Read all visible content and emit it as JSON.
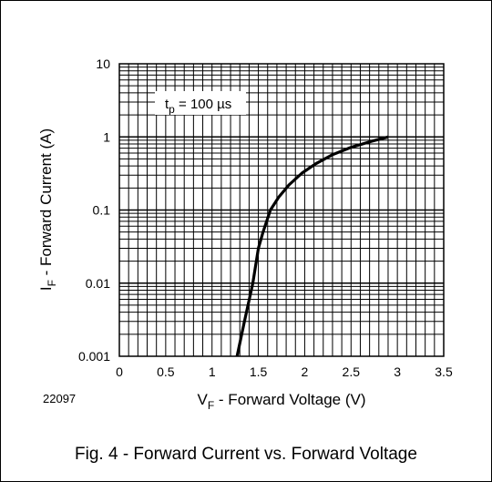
{
  "caption": "Fig. 4 - Forward Current vs. Forward Voltage",
  "figure_code": "22097",
  "chart_data": {
    "type": "line",
    "title": "",
    "xlabel_main": "V",
    "xlabel_sub": "F",
    "xlabel_rest": " - Forward Voltage (V)",
    "ylabel_main": "I",
    "ylabel_sub": "F",
    "ylabel_rest": " - Forward Current (A)",
    "xlim": [
      0,
      3.5
    ],
    "ylim": [
      0.001,
      10
    ],
    "yscale": "log",
    "grid": true,
    "x_ticks": [
      0,
      0.5,
      1,
      1.5,
      2,
      2.5,
      3,
      3.5
    ],
    "x_tick_labels": [
      "0",
      "0.5",
      "1",
      "1.5",
      "2",
      "2.5",
      "3",
      "3.5"
    ],
    "y_ticks": [
      0.001,
      0.01,
      0.1,
      1,
      10
    ],
    "y_tick_labels": [
      "0.001",
      "0.01",
      "0.1",
      "1",
      "10"
    ],
    "annotation": {
      "main": "t",
      "sub": "p",
      "rest": " = 100 µs",
      "x": 1.45,
      "y": 3.2
    },
    "series": [
      {
        "x": [
          1.27,
          1.35,
          1.44,
          1.5,
          1.55,
          1.63,
          1.72,
          1.83,
          1.97,
          2.12,
          2.3,
          2.5,
          2.72,
          2.9
        ],
        "y": [
          0.001,
          0.003,
          0.01,
          0.03,
          0.05,
          0.1,
          0.15,
          0.22,
          0.32,
          0.43,
          0.57,
          0.72,
          0.87,
          1.0
        ]
      }
    ]
  }
}
